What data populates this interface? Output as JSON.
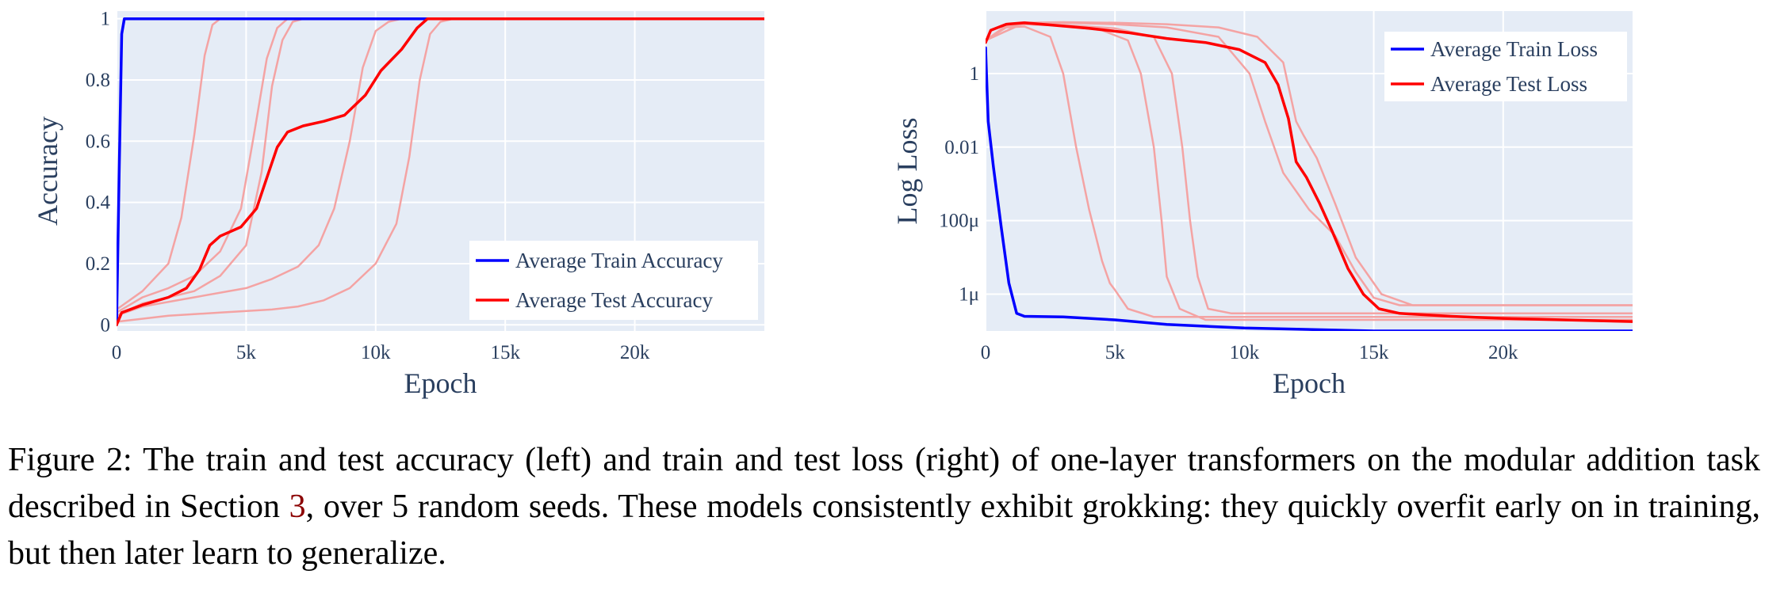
{
  "chart_data": [
    {
      "type": "line",
      "xlabel": "Epoch",
      "ylabel": "Accuracy",
      "xlim": [
        0,
        25000
      ],
      "ylim": [
        0,
        1
      ],
      "x_ticks": [
        0,
        5000,
        10000,
        15000,
        20000
      ],
      "x_tick_labels": [
        "0",
        "5k",
        "10k",
        "15k",
        "20k"
      ],
      "y_ticks": [
        0,
        0.2,
        0.4,
        0.6,
        0.8,
        1
      ],
      "y_tick_labels": [
        "0",
        "0.2",
        "0.4",
        "0.6",
        "0.8",
        "1"
      ],
      "grid": true,
      "legend_position": "bottom-right",
      "series": [
        {
          "name": "Average Train Accuracy",
          "color": "#0000ff",
          "width": 3.5,
          "x": [
            0,
            100,
            200,
            300,
            25000
          ],
          "y": [
            0,
            0.5,
            0.95,
            1,
            1
          ]
        },
        {
          "name": "Average Test Accuracy",
          "color": "#ff0000",
          "width": 3.5,
          "x": [
            0,
            200,
            1000,
            2000,
            2700,
            3200,
            3600,
            4000,
            4800,
            5400,
            5800,
            6200,
            6600,
            7200,
            8000,
            8800,
            9600,
            10200,
            11000,
            11600,
            12000,
            12200,
            25000
          ],
          "y": [
            0,
            0.04,
            0.065,
            0.09,
            0.12,
            0.18,
            0.26,
            0.29,
            0.32,
            0.38,
            0.48,
            0.58,
            0.63,
            0.65,
            0.665,
            0.685,
            0.75,
            0.83,
            0.9,
            0.97,
            1,
            1,
            1
          ]
        },
        {
          "color": "#f4a3a3",
          "width": 2.5,
          "x": [
            0,
            1000,
            2000,
            2500,
            3000,
            3400,
            3700,
            4000,
            25000
          ],
          "y": [
            0.05,
            0.11,
            0.2,
            0.35,
            0.62,
            0.88,
            0.98,
            1,
            1
          ]
        },
        {
          "color": "#f4a3a3",
          "width": 2.5,
          "x": [
            0,
            1000,
            2000,
            3000,
            4000,
            4800,
            5300,
            5800,
            6200,
            6600,
            25000
          ],
          "y": [
            0.04,
            0.09,
            0.12,
            0.16,
            0.24,
            0.38,
            0.62,
            0.87,
            0.97,
            1,
            1
          ]
        },
        {
          "color": "#f4a3a3",
          "width": 2.5,
          "x": [
            0,
            1000,
            2000,
            3000,
            4000,
            5000,
            5600,
            6000,
            6400,
            6800,
            7200,
            25000
          ],
          "y": [
            0.03,
            0.07,
            0.09,
            0.11,
            0.16,
            0.26,
            0.5,
            0.78,
            0.93,
            0.99,
            1,
            1
          ]
        },
        {
          "color": "#f4a3a3",
          "width": 2.5,
          "x": [
            0,
            1000,
            3000,
            5000,
            6000,
            7000,
            7800,
            8400,
            9000,
            9500,
            10000,
            10500,
            11000,
            25000
          ],
          "y": [
            0.03,
            0.06,
            0.09,
            0.12,
            0.15,
            0.19,
            0.26,
            0.38,
            0.6,
            0.84,
            0.96,
            0.99,
            1,
            1
          ]
        },
        {
          "color": "#f4a3a3",
          "width": 2.5,
          "x": [
            0,
            2000,
            4000,
            6000,
            7000,
            8000,
            9000,
            10000,
            10800,
            11300,
            11700,
            12100,
            12500,
            13000,
            25000
          ],
          "y": [
            0.01,
            0.03,
            0.04,
            0.05,
            0.06,
            0.08,
            0.12,
            0.2,
            0.33,
            0.55,
            0.8,
            0.95,
            0.99,
            1,
            1
          ]
        }
      ]
    },
    {
      "type": "line",
      "xlabel": "Epoch",
      "ylabel": "Log Loss",
      "xlim": [
        0,
        25000
      ],
      "yscale": "log",
      "ylim": [
        1e-07,
        50
      ],
      "x_ticks": [
        0,
        5000,
        10000,
        15000,
        20000
      ],
      "x_tick_labels": [
        "0",
        "5k",
        "10k",
        "15k",
        "20k"
      ],
      "y_ticks": [
        1e-06,
        0.0001,
        0.01,
        1
      ],
      "y_tick_labels": [
        "1μ",
        "100μ",
        "0.01",
        "1"
      ],
      "grid": true,
      "legend_position": "top-right",
      "series": [
        {
          "name": "Average Train Loss",
          "color": "#0000ff",
          "width": 3.5,
          "x": [
            0,
            100,
            300,
            600,
            900,
            1200,
            1500,
            3000,
            5000,
            7000,
            10000,
            15000,
            20000,
            25000
          ],
          "y": [
            5,
            0.05,
            0.003,
            7e-05,
            2e-06,
            3e-07,
            2.5e-07,
            2.4e-07,
            2e-07,
            1.5e-07,
            1.2e-07,
            1e-07,
            1e-07,
            1e-07
          ]
        },
        {
          "name": "Average Test Loss",
          "color": "#ff0000",
          "width": 3.5,
          "x": [
            0,
            200,
            800,
            1500,
            2500,
            4000,
            5500,
            7000,
            8500,
            9800,
            10800,
            11300,
            11700,
            12000,
            12400,
            12900,
            13400,
            14000,
            14600,
            15200,
            16000,
            18000,
            20000,
            25000
          ],
          "y": [
            7,
            15,
            22,
            24,
            21,
            17,
            13,
            9,
            7,
            4.5,
            2,
            0.5,
            0.06,
            0.004,
            0.0015,
            0.0003,
            5e-05,
            5e-06,
            1e-06,
            4e-07,
            3e-07,
            2.5e-07,
            2.2e-07,
            1.8e-07
          ]
        },
        {
          "color": "#f4a3a3",
          "width": 2.5,
          "x": [
            0,
            800,
            1500,
            2500,
            3000,
            3500,
            4000,
            4500,
            4800,
            5000,
            5500,
            6500,
            25000
          ],
          "y": [
            8,
            18,
            19,
            10,
            1,
            0.01,
            0.0002,
            8e-06,
            2e-06,
            1.3e-06,
            4e-07,
            2.4e-07,
            2.4e-07
          ]
        },
        {
          "color": "#f4a3a3",
          "width": 2.5,
          "x": [
            0,
            800,
            1500,
            3000,
            4500,
            5500,
            6000,
            6500,
            6800,
            7000,
            7500,
            8500,
            25000
          ],
          "y": [
            8,
            20,
            22,
            20,
            15,
            8,
            1,
            0.01,
            0.0001,
            3e-06,
            4e-07,
            2e-07,
            2e-07
          ]
        },
        {
          "color": "#f4a3a3",
          "width": 2.5,
          "x": [
            0,
            800,
            1500,
            3000,
            5000,
            6500,
            7200,
            7600,
            7900,
            8200,
            8600,
            9500,
            25000
          ],
          "y": [
            8,
            20,
            22,
            21,
            17,
            10,
            1,
            0.01,
            0.0001,
            3e-06,
            4e-07,
            3e-07,
            3e-07
          ]
        },
        {
          "color": "#f4a3a3",
          "width": 2.5,
          "x": [
            0,
            1500,
            3000,
            5000,
            7000,
            9000,
            10200,
            10800,
            11500,
            12500,
            13500,
            14300,
            15000,
            16000,
            25000
          ],
          "y": [
            8,
            24,
            24,
            22,
            18,
            10,
            1,
            0.05,
            0.002,
            0.0002,
            4e-05,
            4e-06,
            8e-07,
            5e-07,
            5e-07
          ]
        },
        {
          "color": "#f4a3a3",
          "width": 2.5,
          "x": [
            0,
            1500,
            3000,
            5000,
            7000,
            9000,
            10500,
            11500,
            12000,
            12300,
            12800,
            13500,
            14300,
            15300,
            16500,
            25000
          ],
          "y": [
            8,
            24,
            25,
            24,
            22,
            18,
            10,
            2,
            0.05,
            0.02,
            0.005,
            0.0003,
            1e-05,
            1e-06,
            5e-07,
            5e-07
          ]
        }
      ]
    }
  ],
  "caption": {
    "prefix": "Figure 2: The train and test accuracy (left) and train and test loss (right) of one-layer transformers on the modular addition task described in Section ",
    "ref": "3",
    "suffix": ", over 5 random seeds. These models consistently exhibit grokking: they quickly overfit early on in training, but then later learn to generalize."
  }
}
